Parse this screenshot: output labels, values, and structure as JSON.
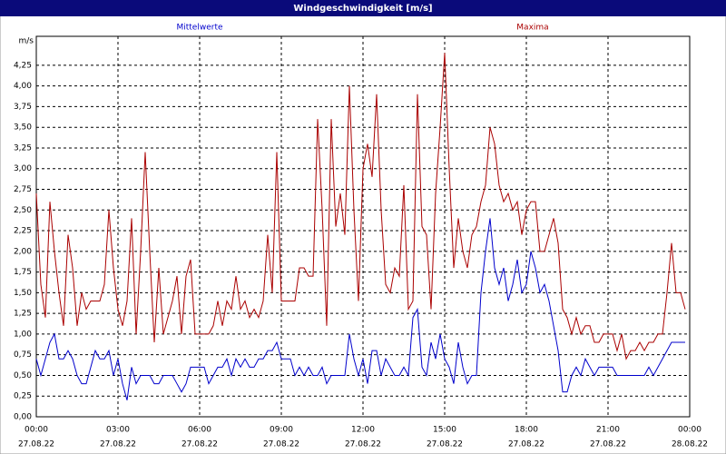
{
  "chart_data": {
    "type": "line",
    "title": "Windgeschwindigkeit [m/s]",
    "y_label": "m/s",
    "xlim": [
      0,
      1440
    ],
    "xticks": [
      {
        "value": 0,
        "label": "00:00"
      },
      {
        "value": 180,
        "label": "03:00"
      },
      {
        "value": 360,
        "label": "06:00"
      },
      {
        "value": 540,
        "label": "09:00"
      },
      {
        "value": 720,
        "label": "12:00"
      },
      {
        "value": 900,
        "label": "15:00"
      },
      {
        "value": 1080,
        "label": "18:00"
      },
      {
        "value": 1260,
        "label": "21:00"
      },
      {
        "value": 1440,
        "label": "00:00"
      }
    ],
    "xtick_dates": [
      "27.08.22",
      "27.08.22",
      "27.08.22",
      "27.08.22",
      "27.08.22",
      "27.08.22",
      "27.08.22",
      "27.08.22",
      "28.08.22"
    ],
    "ylim": [
      0,
      4.6
    ],
    "yticks": [
      {
        "value": 0,
        "label": "0,00"
      },
      {
        "value": 0.25,
        "label": "0,25"
      },
      {
        "value": 0.5,
        "label": "0,50"
      },
      {
        "value": 0.75,
        "label": "0,75"
      },
      {
        "value": 1,
        "label": "1,00"
      },
      {
        "value": 1.25,
        "label": "1,25"
      },
      {
        "value": 1.5,
        "label": "1,50"
      },
      {
        "value": 1.75,
        "label": "1,75"
      },
      {
        "value": 2,
        "label": "2,00"
      },
      {
        "value": 2.25,
        "label": "2,25"
      },
      {
        "value": 2.5,
        "label": "2,50"
      },
      {
        "value": 2.75,
        "label": "2,75"
      },
      {
        "value": 3,
        "label": "3,00"
      },
      {
        "value": 3.25,
        "label": "3,25"
      },
      {
        "value": 3.5,
        "label": "3,50"
      },
      {
        "value": 3.75,
        "label": "3,75"
      },
      {
        "value": 4,
        "label": "4,00"
      },
      {
        "value": 4.25,
        "label": "4,25"
      }
    ],
    "grid": true,
    "x": [
      0,
      10,
      20,
      30,
      40,
      50,
      60,
      70,
      80,
      90,
      100,
      110,
      120,
      130,
      140,
      150,
      160,
      170,
      180,
      190,
      200,
      210,
      220,
      230,
      240,
      250,
      260,
      270,
      280,
      290,
      300,
      310,
      320,
      330,
      340,
      350,
      360,
      370,
      380,
      390,
      400,
      410,
      420,
      430,
      440,
      450,
      460,
      470,
      480,
      490,
      500,
      510,
      520,
      530,
      540,
      550,
      560,
      570,
      580,
      590,
      600,
      610,
      620,
      630,
      640,
      650,
      660,
      670,
      680,
      690,
      700,
      710,
      720,
      730,
      740,
      750,
      760,
      770,
      780,
      790,
      800,
      810,
      820,
      830,
      840,
      850,
      860,
      870,
      880,
      890,
      900,
      910,
      920,
      930,
      940,
      950,
      960,
      970,
      980,
      990,
      1000,
      1010,
      1020,
      1030,
      1040,
      1050,
      1060,
      1070,
      1080,
      1090,
      1100,
      1110,
      1120,
      1130,
      1140,
      1150,
      1160,
      1170,
      1180,
      1190,
      1200,
      1210,
      1220,
      1230,
      1240,
      1250,
      1260,
      1270,
      1280,
      1290,
      1300,
      1310,
      1320,
      1330,
      1340,
      1350,
      1360,
      1370,
      1380,
      1390,
      1400,
      1410,
      1420,
      1430
    ],
    "series": [
      {
        "name": "Mittelwerte",
        "color": "#0000cc",
        "values": [
          0.7,
          0.5,
          0.7,
          0.9,
          1.0,
          0.7,
          0.7,
          0.8,
          0.7,
          0.5,
          0.4,
          0.4,
          0.6,
          0.8,
          0.7,
          0.7,
          0.8,
          0.5,
          0.7,
          0.4,
          0.2,
          0.6,
          0.4,
          0.5,
          0.5,
          0.5,
          0.4,
          0.4,
          0.5,
          0.5,
          0.5,
          0.4,
          0.3,
          0.4,
          0.6,
          0.6,
          0.6,
          0.6,
          0.4,
          0.5,
          0.6,
          0.6,
          0.7,
          0.5,
          0.7,
          0.6,
          0.7,
          0.6,
          0.6,
          0.7,
          0.7,
          0.8,
          0.8,
          0.9,
          0.7,
          0.7,
          0.7,
          0.5,
          0.6,
          0.5,
          0.6,
          0.5,
          0.5,
          0.6,
          0.4,
          0.5,
          0.5,
          0.5,
          0.5,
          1.0,
          0.7,
          0.5,
          0.7,
          0.4,
          0.8,
          0.8,
          0.5,
          0.7,
          0.6,
          0.5,
          0.5,
          0.6,
          0.5,
          1.2,
          1.3,
          0.6,
          0.5,
          0.9,
          0.7,
          1.0,
          0.7,
          0.6,
          0.4,
          0.9,
          0.6,
          0.4,
          0.5,
          0.5,
          1.5,
          2.0,
          2.4,
          1.8,
          1.6,
          1.8,
          1.4,
          1.6,
          1.9,
          1.5,
          1.6,
          2.0,
          1.8,
          1.5,
          1.6,
          1.4,
          1.1,
          0.8,
          0.3,
          0.3,
          0.5,
          0.6,
          0.5,
          0.7,
          0.6,
          0.5,
          0.6,
          0.6,
          0.6,
          0.6,
          0.5,
          0.5,
          0.5,
          0.5,
          0.5,
          0.5,
          0.5,
          0.6,
          0.5,
          0.6,
          0.7,
          0.8,
          0.9,
          0.9,
          0.9,
          0.9
        ]
      },
      {
        "name": "Maxima",
        "color": "#aa0000",
        "values": [
          2.7,
          1.6,
          1.2,
          2.6,
          2.0,
          1.5,
          1.1,
          2.2,
          1.8,
          1.1,
          1.5,
          1.3,
          1.4,
          1.4,
          1.4,
          1.6,
          2.5,
          1.8,
          1.3,
          1.1,
          1.4,
          2.4,
          1.0,
          2.0,
          3.2,
          2.0,
          0.9,
          1.8,
          1.0,
          1.2,
          1.4,
          1.7,
          1.0,
          1.7,
          1.9,
          1.0,
          1.0,
          1.0,
          1.0,
          1.1,
          1.4,
          1.1,
          1.4,
          1.3,
          1.7,
          1.3,
          1.4,
          1.2,
          1.3,
          1.2,
          1.4,
          2.2,
          1.5,
          3.2,
          1.4,
          1.4,
          1.4,
          1.4,
          1.8,
          1.8,
          1.7,
          1.7,
          3.6,
          2.5,
          1.1,
          3.6,
          2.3,
          2.7,
          2.2,
          4.0,
          2.5,
          1.4,
          3.0,
          3.3,
          2.9,
          3.9,
          2.5,
          1.6,
          1.5,
          1.8,
          1.7,
          2.8,
          1.3,
          1.4,
          3.9,
          2.3,
          2.2,
          1.3,
          2.7,
          3.5,
          4.4,
          3.0,
          1.8,
          2.4,
          2.0,
          1.8,
          2.2,
          2.3,
          2.6,
          2.8,
          3.5,
          3.3,
          2.8,
          2.6,
          2.7,
          2.5,
          2.6,
          2.2,
          2.5,
          2.6,
          2.6,
          2.0,
          2.0,
          2.2,
          2.4,
          2.1,
          1.3,
          1.2,
          1.0,
          1.2,
          1.0,
          1.1,
          1.1,
          0.9,
          0.9,
          1.0,
          1.0,
          1.0,
          0.8,
          1.0,
          0.7,
          0.8,
          0.8,
          0.9,
          0.8,
          0.9,
          0.9,
          1.0,
          1.0,
          1.5,
          2.1,
          1.5,
          1.5,
          1.3
        ]
      }
    ]
  }
}
